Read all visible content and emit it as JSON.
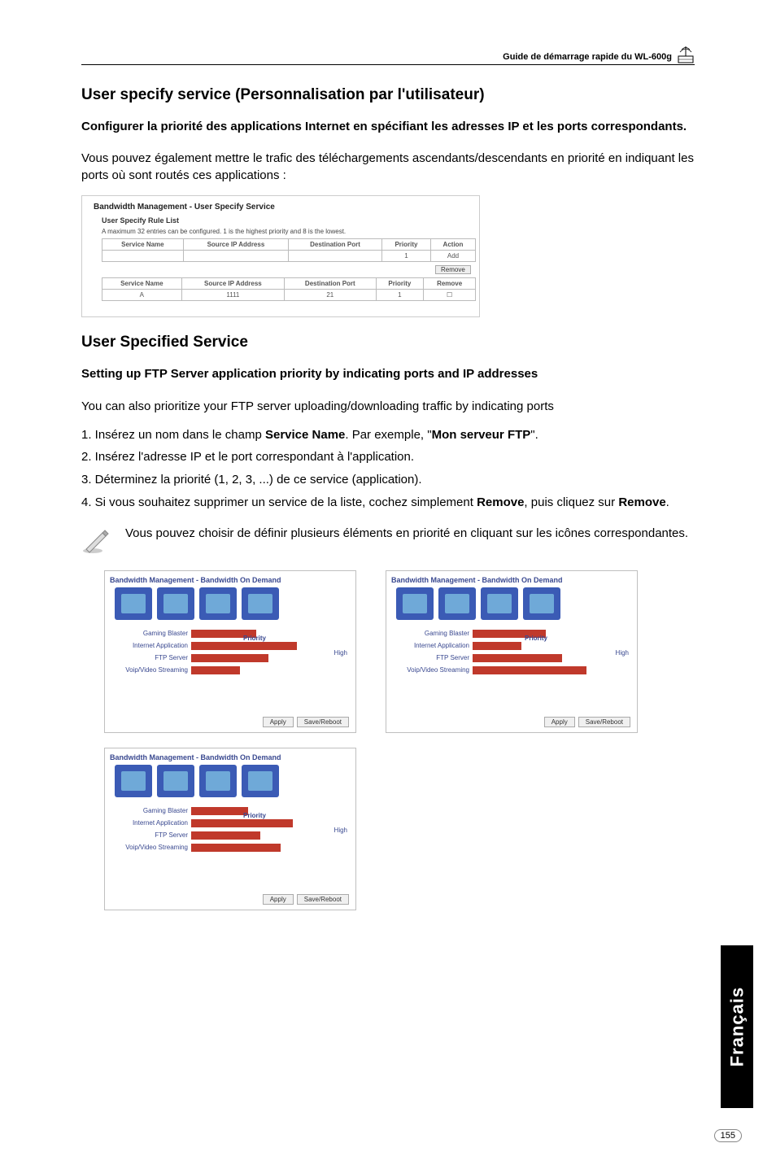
{
  "header": {
    "guide_title": "Guide de démarrage rapide du WL-600g"
  },
  "section1": {
    "title": "User specify service (Personnalisation par l'utilisateur)",
    "subtitle": "Configurer la priorité des applications Internet en spécifiant les adresses IP et les ports correspondants.",
    "intro": "Vous pouvez également mettre le trafic des téléchargements ascendants/descendants en priorité en indiquant les ports où sont routés ces applications :"
  },
  "screenshot_table": {
    "window_title": "Bandwidth Management - User Specify Service",
    "caption": "User Specify Rule List",
    "note": "A maximum 32 entries can be configured. 1 is the highest priority and 8 is the lowest.",
    "cols_top": [
      "Service Name",
      "Source IP Address",
      "Destination Port",
      "Priority",
      "Action"
    ],
    "row_top_priority": "1",
    "row_top_action": "Add",
    "remove_btn": "Remove",
    "cols_bot": [
      "Service Name",
      "Source IP Address",
      "Destination Port",
      "Priority",
      "Remove"
    ],
    "row_bot": [
      "A",
      "1111",
      "21",
      "1",
      "☐"
    ]
  },
  "section2": {
    "title": "User Specified Service",
    "subtitle": "Setting up FTP Server application priority by indicating ports and IP addresses",
    "lead": "You can also prioritize your FTP server uploading/downloading traffic by indicating ports",
    "steps": [
      "1. Insérez un nom dans le champ Service Name. Par exemple, \"Mon serveur FTP\".",
      "2. Insérez l'adresse IP et le port correspondant à l'application.",
      "3. Déterminez la priorité (1, 2, 3, ...) de ce service (application).",
      "4. Si vous souhaitez supprimer un service de la liste, cochez simplement Remove, puis cliquez sur Remove."
    ],
    "step1_bold_a": "Service Name",
    "step1_bold_b": "Mon serveur FTP",
    "step4_bold_a": "Remove",
    "step4_bold_b": "Remove"
  },
  "note": {
    "text": "Vous pouvez choisir de définir plusieurs éléments en priorité en cliquant sur les icônes correspondantes."
  },
  "thumbs": {
    "title": "Bandwidth Management - Bandwidth On Demand",
    "priority_label": "Priority",
    "side_high": "High",
    "rows": [
      "Gaming Blaster",
      "Internet Application",
      "FTP Server",
      "Voip/Video Streaming"
    ],
    "btn_apply": "Apply",
    "btn_save": "Save/Reboot",
    "bars_set": [
      {
        "widths": [
          80,
          130,
          95,
          60
        ]
      },
      {
        "widths": [
          90,
          60,
          110,
          140
        ]
      },
      {
        "widths": [
          70,
          125,
          85,
          110
        ]
      }
    ]
  },
  "side_tab": "Français",
  "page_number": "155"
}
